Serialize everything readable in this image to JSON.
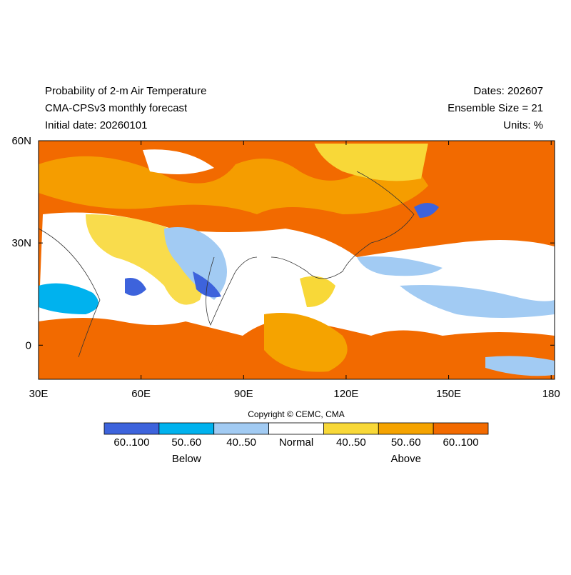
{
  "map": {
    "title_lines": [
      "Probability of 2-m Air Temperature",
      "CMA-CPSv3 monthly forecast",
      "Initial date: 20260101"
    ],
    "info_lines": [
      "Dates: 202607",
      "Ensemble Size = 21",
      "Units: %"
    ],
    "xlim": [
      30,
      181
    ],
    "ylim": [
      -10,
      60
    ],
    "xticks": [
      {
        "value": 30,
        "label": "30E"
      },
      {
        "value": 60,
        "label": "60E"
      },
      {
        "value": 90,
        "label": "90E"
      },
      {
        "value": 120,
        "label": "120E"
      },
      {
        "value": 150,
        "label": "150E"
      },
      {
        "value": 180,
        "label": "180"
      }
    ],
    "yticks": [
      {
        "value": 0,
        "label": "0"
      },
      {
        "value": 30,
        "label": "30N"
      },
      {
        "value": 60,
        "label": "60N"
      }
    ],
    "copyright": "Copyright © CEMC, CMA",
    "legend": [
      {
        "label": "60..100",
        "color": "#3d63dc"
      },
      {
        "label": "50..60",
        "color": "#00b2ee"
      },
      {
        "label": "40..50",
        "color": "#a2cbf3"
      },
      {
        "label": "Normal",
        "color": "#ffffff"
      },
      {
        "label": "40..50",
        "color": "#f8d838"
      },
      {
        "label": "50..60",
        "color": "#f5a300"
      },
      {
        "label": "60..100",
        "color": "#f26a00"
      }
    ],
    "legend_groups": [
      "Below",
      "Above"
    ]
  }
}
